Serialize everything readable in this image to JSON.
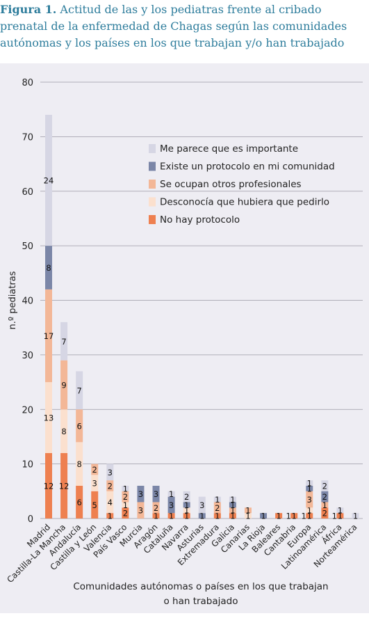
{
  "caption": {
    "label": "Figura 1.",
    "text": "Actitud de las y los pediatras frente al cribado prenatal de la enfermedad de Chagas según las comunidades autónomas y los países en los que trabajan y/o han trabajado"
  },
  "chart_data": {
    "type": "bar",
    "stacked": true,
    "ylabel": "n.º pediatras",
    "xlabel_line1": "Comunidades autónomas o países en los que trabajan",
    "xlabel_line2": "o han trabajado",
    "ylim": [
      0,
      80
    ],
    "yticks": [
      0,
      10,
      20,
      30,
      40,
      50,
      60,
      70,
      80
    ],
    "grid": true,
    "legend_position": "top-right",
    "categories": [
      "Madrid",
      "Castilla-La Mancha",
      "Andalucía",
      "Castilla y León",
      "Valencia",
      "País Vasco",
      "Murcia",
      "Aragón",
      "Cataluña",
      "Navarra",
      "Asturias",
      "Extremadura",
      "Galicia",
      "Canarias",
      "La Rioja",
      "Baleares",
      "Cantabria",
      "Europa",
      "Latinoamérica",
      "África",
      "Norteamérica"
    ],
    "series": [
      {
        "name": "No hay protocolo",
        "color": "#ee8050",
        "values": [
          12,
          12,
          6,
          5,
          1,
          2,
          0,
          1,
          1,
          1,
          0,
          1,
          1,
          0,
          0,
          1,
          1,
          1,
          2,
          1,
          0
        ]
      },
      {
        "name": "Desconocía que hubiera que pedirlo",
        "color": "#fbe0ce",
        "values": [
          13,
          8,
          8,
          3,
          4,
          1,
          0,
          0,
          0,
          1,
          0,
          0,
          0,
          1,
          0,
          0,
          0,
          1,
          0,
          0,
          0
        ]
      },
      {
        "name": "Se ocupan otros profesionales",
        "color": "#f3b797",
        "values": [
          17,
          9,
          6,
          2,
          2,
          2,
          3,
          2,
          0,
          0,
          0,
          2,
          1,
          1,
          0,
          0,
          0,
          3,
          1,
          0,
          0
        ]
      },
      {
        "name": "Existe un protocolo en mi comunidad",
        "color": "#7b86a7",
        "values": [
          8,
          0,
          0,
          0,
          0,
          0,
          3,
          3,
          3,
          1,
          1,
          0,
          1,
          0,
          1,
          0,
          0,
          1,
          2,
          0,
          0
        ]
      },
      {
        "name": "Me parece que es importante",
        "color": "#d6d6e4",
        "values": [
          24,
          7,
          7,
          0,
          3,
          1,
          0,
          0,
          1,
          2,
          3,
          1,
          1,
          0,
          0,
          0,
          0,
          1,
          2,
          1,
          1
        ]
      }
    ],
    "outside_labels": [
      {
        "category": "Baleares",
        "value": 1
      },
      {
        "category": "Cantabria",
        "value": 1
      },
      {
        "category": "Latinoamérica",
        "value": 1
      }
    ]
  }
}
